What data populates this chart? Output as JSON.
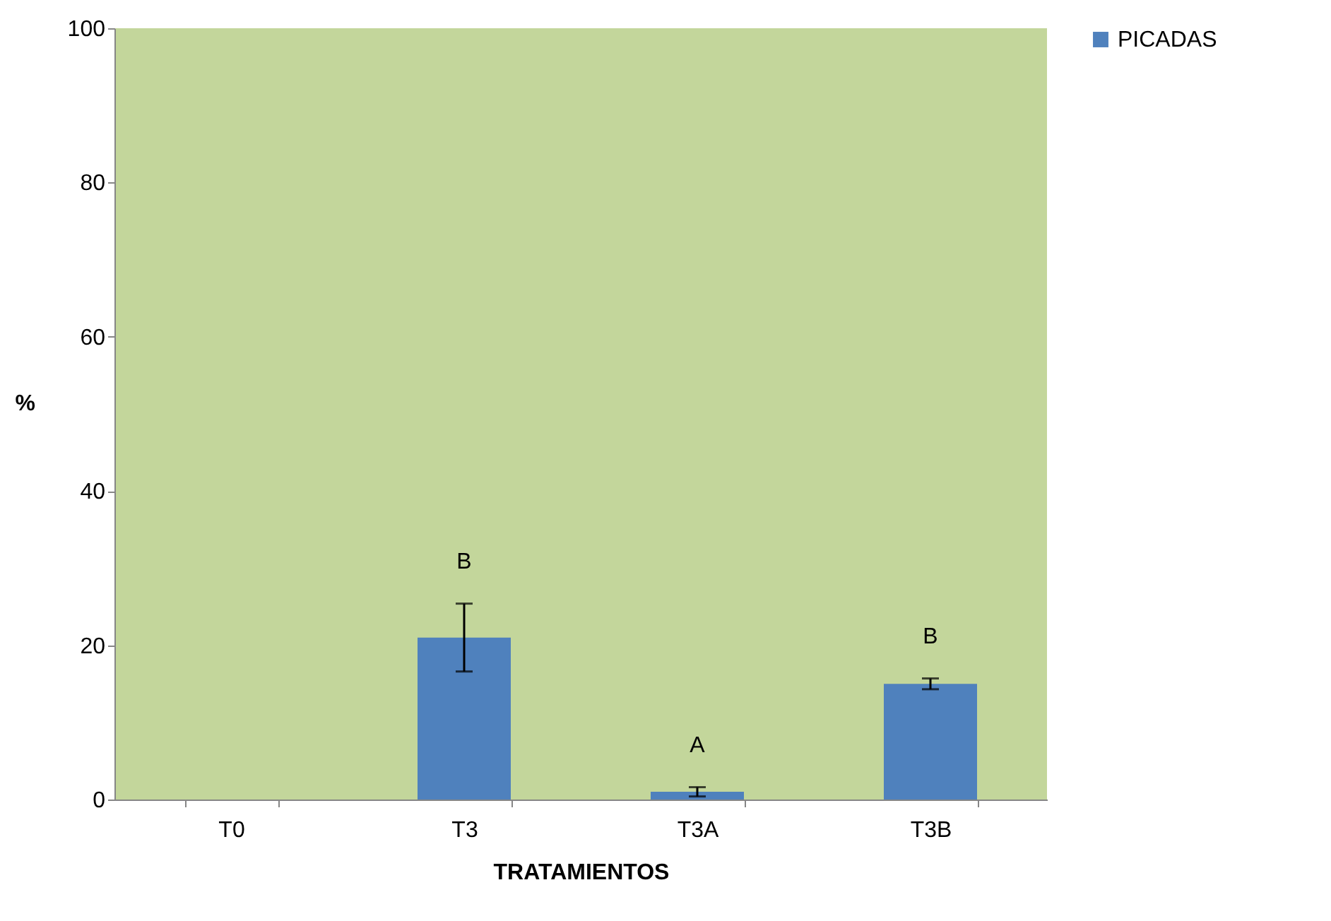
{
  "chart_data": {
    "type": "bar",
    "xlabel": "TRATAMIENTOS",
    "ylabel": "%",
    "categories": [
      "T0",
      "T3",
      "T3A",
      "T3B"
    ],
    "series": [
      {
        "name": "PICADAS",
        "color": "#4f81bd",
        "values": [
          0,
          21,
          1,
          15
        ],
        "errors": [
          null,
          4.4,
          0.6,
          0.7
        ]
      }
    ],
    "ylim": [
      0,
      100
    ],
    "yticks": [
      0,
      20,
      40,
      60,
      80,
      100
    ],
    "grid": false,
    "legend": "right",
    "annotations": [
      "B",
      "A",
      "B"
    ]
  }
}
